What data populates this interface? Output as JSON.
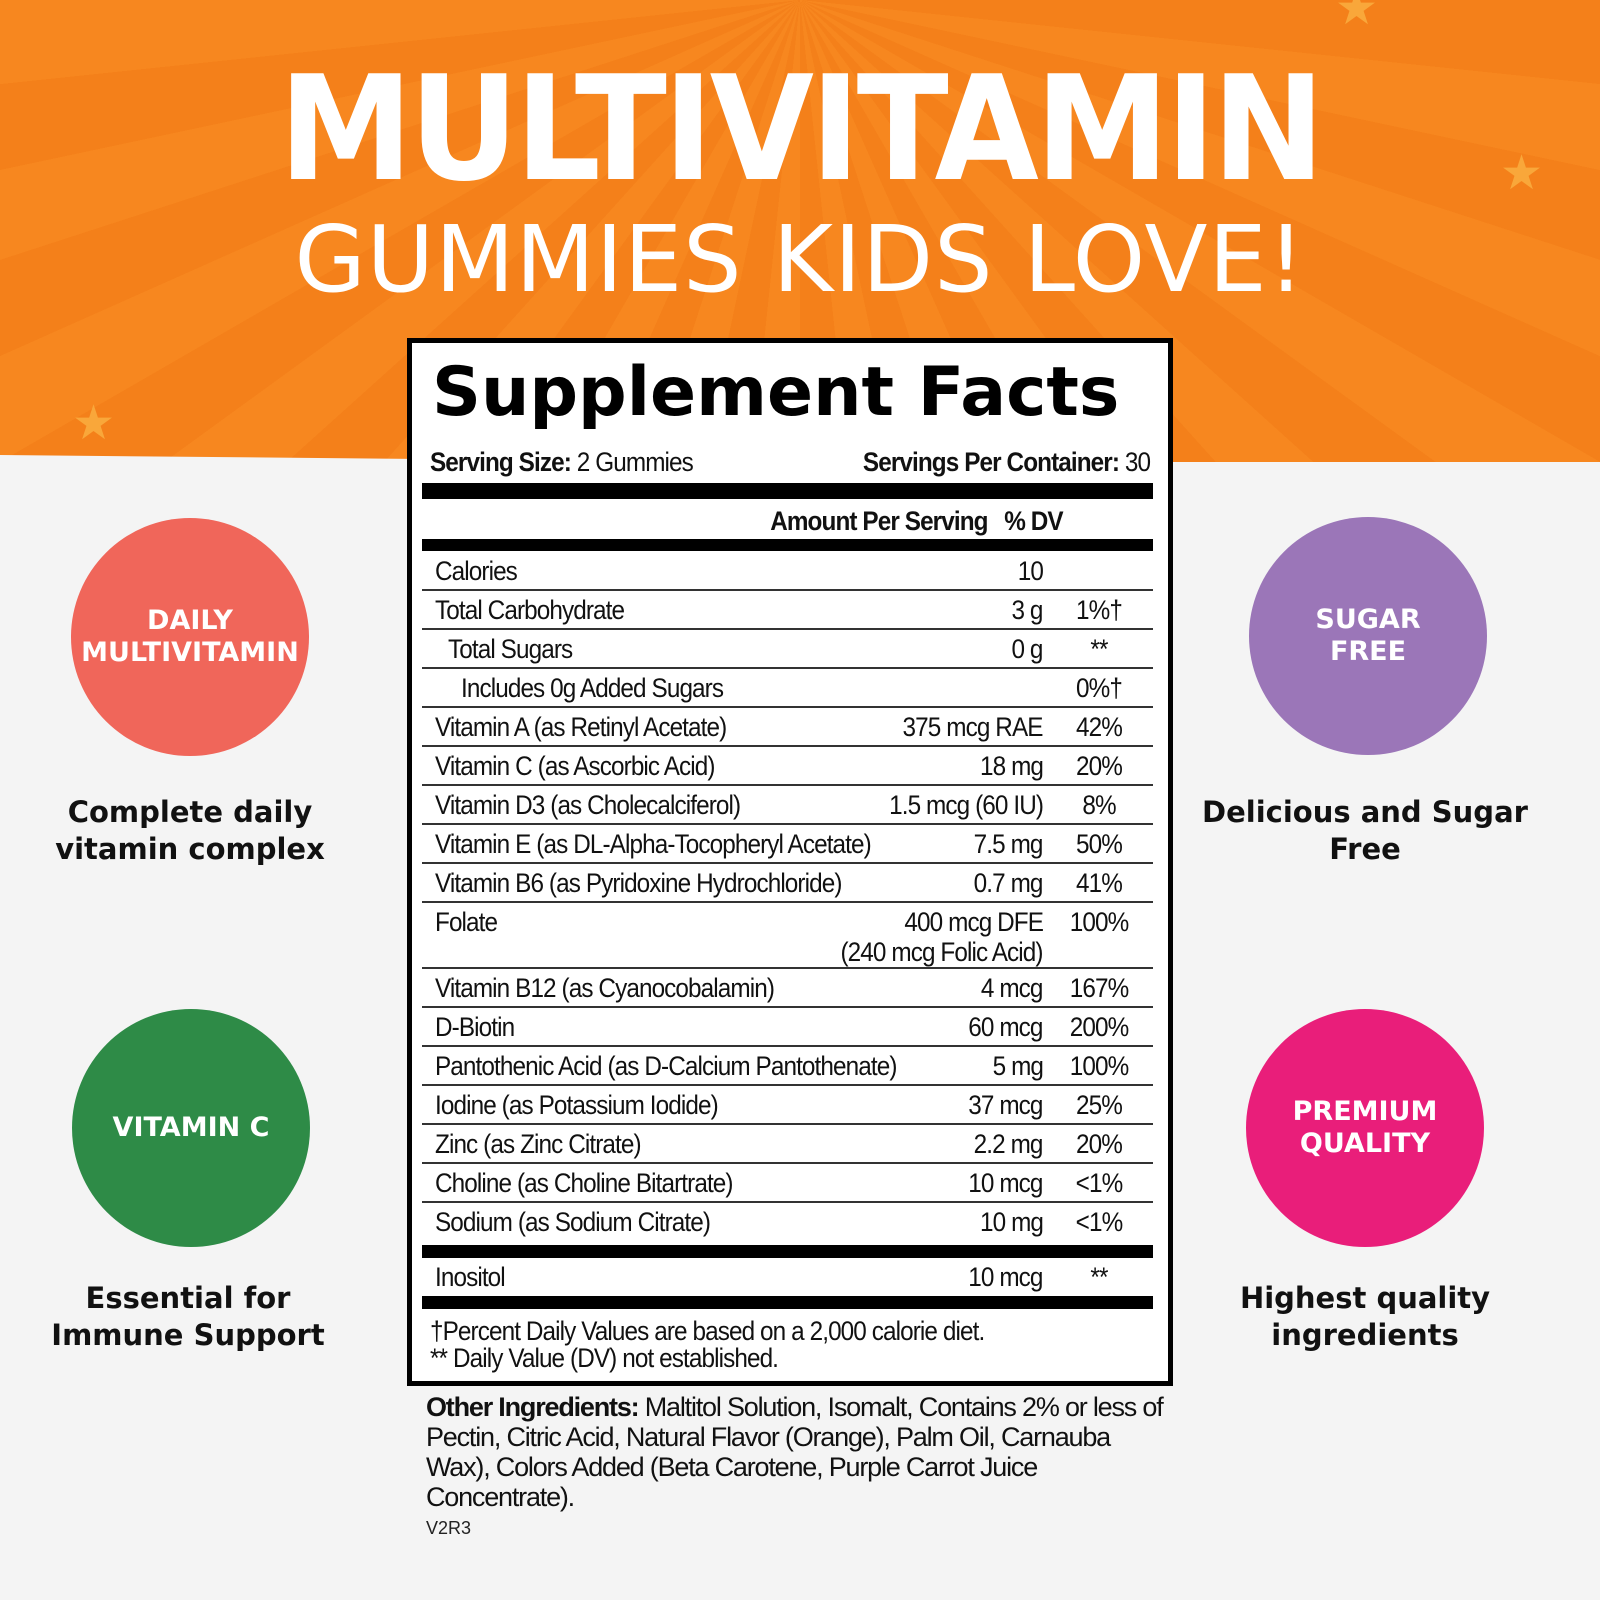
{
  "header": {
    "title": "MULTIVITAMIN",
    "subtitle": "GUMMIES KIDS LOVE!"
  },
  "badges": [
    {
      "label": "DAILY MULTIVITAMIN",
      "caption": "Complete daily vitamin complex",
      "color": "#f0665a"
    },
    {
      "label": "VITAMIN C",
      "caption": "Essential for Immune Support",
      "color": "#2e8b47"
    },
    {
      "label": "SUGAR FREE",
      "caption": "Delicious and Sugar Free",
      "color": "#9b76b8"
    },
    {
      "label": "PREMIUM QUALITY",
      "caption": "Highest quality ingredients",
      "color": "#e91e7a"
    }
  ],
  "facts": {
    "title": "Supplement Facts",
    "serving_size_label": "Serving Size:",
    "serving_size": "2 Gummies",
    "servings_label": "Servings Per Container:",
    "servings": "30",
    "col_amount": "Amount Per Serving",
    "col_dv": "% DV",
    "rows": [
      {
        "name": "Calories",
        "amount": "10",
        "dv": ""
      },
      {
        "name": "Total Carbohydrate",
        "amount": "3 g",
        "dv": "1%†"
      },
      {
        "name": "Total Sugars",
        "amount": "0 g",
        "dv": "**"
      },
      {
        "name": "Includes 0g Added Sugars",
        "amount": "",
        "dv": "0%†"
      },
      {
        "name": "Vitamin A (as Retinyl Acetate)",
        "amount": "375 mcg RAE",
        "dv": "42%"
      },
      {
        "name": "Vitamin C (as Ascorbic Acid)",
        "amount": "18 mg",
        "dv": "20%"
      },
      {
        "name": "Vitamin D3 (as Cholecalciferol)",
        "amount": "1.5 mcg (60 IU)",
        "dv": "8%"
      },
      {
        "name": "Vitamin E (as DL-Alpha-Tocopheryl Acetate)",
        "amount": "7.5 mg",
        "dv": "50%"
      },
      {
        "name": "Vitamin B6 (as Pyridoxine Hydrochloride)",
        "amount": "0.7 mg",
        "dv": "41%"
      },
      {
        "name": "Folate",
        "amount": "400 mcg DFE",
        "amount2": "(240 mcg Folic Acid)",
        "dv": "100%"
      },
      {
        "name": "Vitamin B12 (as Cyanocobalamin)",
        "amount": "4 mcg",
        "dv": "167%"
      },
      {
        "name": "D-Biotin",
        "amount": "60 mcg",
        "dv": "200%"
      },
      {
        "name": "Pantothenic Acid (as D-Calcium Pantothenate)",
        "amount": "5 mg",
        "dv": "100%"
      },
      {
        "name": "Iodine (as Potassium Iodide)",
        "amount": "37 mcg",
        "dv": "25%"
      },
      {
        "name": "Zinc (as Zinc Citrate)",
        "amount": "2.2 mg",
        "dv": "20%"
      },
      {
        "name": "Choline (as Choline Bitartrate)",
        "amount": "10 mcg",
        "dv": "<1%"
      },
      {
        "name": "Sodium (as Sodium Citrate)",
        "amount": "10 mg",
        "dv": "<1%"
      }
    ],
    "extra": {
      "name": "Inositol",
      "amount": "10 mcg",
      "dv": "**"
    },
    "footnote1": "†Percent Daily Values are based on a 2,000 calorie diet.",
    "footnote2": "** Daily Value (DV) not established."
  },
  "other_ingredients": {
    "label": "Other Ingredients:",
    "text": " Maltitol Solution, Isomalt, Contains 2% or less of Pectin, Citric Acid, Natural Flavor (Orange), Palm Oil, Carnauba Wax), Colors Added (Beta Carotene, Purple Carrot Juice Concentrate)."
  },
  "version": "V2R3"
}
